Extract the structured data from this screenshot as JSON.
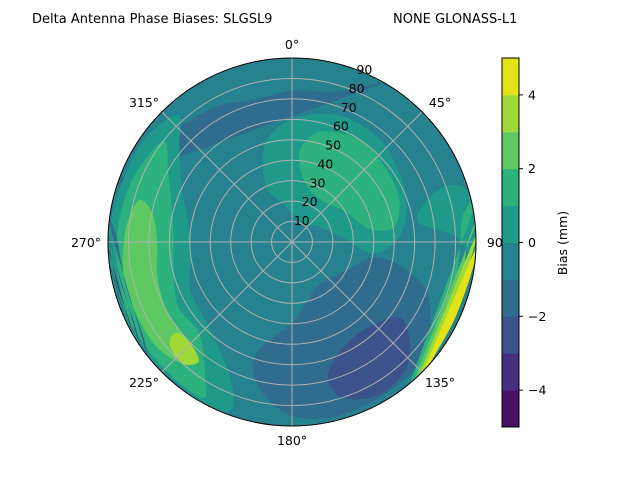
{
  "chart_data": {
    "type": "heatmap",
    "subtype": "polar-contour",
    "title_left": "Delta Antenna Phase Biases: SLGSL9",
    "title_right": "NONE GLONASS-L1",
    "azimuth_direction": "clockwise",
    "azimuth_zero": "top",
    "azimuth_ticks": [
      {
        "value": 0,
        "label": "0°"
      },
      {
        "value": 45,
        "label": "45°"
      },
      {
        "value": 90,
        "label": "90°"
      },
      {
        "value": 135,
        "label": "135°"
      },
      {
        "value": 180,
        "label": "180°"
      },
      {
        "value": 225,
        "label": "225°"
      },
      {
        "value": 270,
        "label": "270°"
      },
      {
        "value": 315,
        "label": "315°"
      }
    ],
    "radial_range": [
      0,
      90
    ],
    "radial_ticks": [
      "10",
      "20",
      "30",
      "40",
      "50",
      "60",
      "70",
      "80",
      "90"
    ],
    "grid": true,
    "colorbar": {
      "label": "Bias (mm)",
      "range": [
        -5,
        5
      ],
      "ticks": [
        "−4",
        "−2",
        "0",
        "2",
        "4"
      ],
      "tick_values": [
        -4,
        -2,
        0,
        2,
        4
      ],
      "levels": [
        -5,
        -4,
        -3,
        -2,
        -1,
        0,
        1,
        2,
        3,
        4,
        5
      ],
      "colors": [
        "#471164",
        "#472f7d",
        "#3b528b",
        "#2f6c8e",
        "#26828e",
        "#1f9a8a",
        "#2db27d",
        "#5ec962",
        "#a0da39",
        "#e2e418"
      ]
    },
    "background_level": -1,
    "regions": [
      {
        "level": -2,
        "points": [
          [
            290,
            90
          ],
          [
            292,
            84
          ],
          [
            310,
            80
          ],
          [
            330,
            76
          ],
          [
            345,
            72
          ],
          [
            0,
            74
          ],
          [
            15,
            76
          ],
          [
            25,
            84
          ],
          [
            30,
            90
          ]
        ]
      },
      {
        "level": 0,
        "points": [
          [
            335,
            30
          ],
          [
            345,
            50
          ],
          [
            0,
            60
          ],
          [
            20,
            66
          ],
          [
            40,
            66
          ],
          [
            60,
            62
          ],
          [
            75,
            58
          ],
          [
            88,
            52
          ],
          [
            98,
            40
          ],
          [
            85,
            25
          ],
          [
            60,
            15
          ],
          [
            25,
            10
          ],
          [
            350,
            18
          ]
        ]
      },
      {
        "level": 0,
        "points": [
          [
            80,
            62
          ],
          [
            88,
            80
          ],
          [
            95,
            90
          ],
          [
            75,
            90
          ],
          [
            70,
            78
          ]
        ]
      },
      {
        "level": 0,
        "points": [
          [
            205,
            72
          ],
          [
            200,
            88
          ],
          [
            212,
            90
          ],
          [
            240,
            90
          ],
          [
            270,
            90
          ],
          [
            300,
            88
          ],
          [
            318,
            84
          ],
          [
            310,
            72
          ],
          [
            296,
            60
          ],
          [
            282,
            52
          ],
          [
            262,
            50
          ],
          [
            245,
            55
          ],
          [
            225,
            58
          ]
        ]
      },
      {
        "level": 1,
        "points": [
          [
            5,
            45
          ],
          [
            15,
            56
          ],
          [
            35,
            60
          ],
          [
            55,
            58
          ],
          [
            70,
            56
          ],
          [
            82,
            50
          ],
          [
            80,
            38
          ],
          [
            60,
            30
          ],
          [
            35,
            25
          ],
          [
            12,
            30
          ]
        ]
      },
      {
        "level": 1,
        "points": [
          [
            212,
            80
          ],
          [
            210,
            88
          ],
          [
            225,
            88
          ],
          [
            245,
            88
          ],
          [
            268,
            86
          ],
          [
            290,
            84
          ],
          [
            308,
            80
          ],
          [
            300,
            70
          ],
          [
            288,
            62
          ],
          [
            272,
            58
          ],
          [
            255,
            60
          ],
          [
            240,
            64
          ],
          [
            225,
            64
          ]
        ]
      },
      {
        "level": 2,
        "points": [
          [
            222,
            72
          ],
          [
            222,
            80
          ],
          [
            235,
            84
          ],
          [
            255,
            84
          ],
          [
            272,
            82
          ],
          [
            285,
            78
          ],
          [
            282,
            70
          ],
          [
            270,
            66
          ],
          [
            255,
            68
          ],
          [
            240,
            70
          ]
        ]
      },
      {
        "level": 3,
        "points": [
          [
            218,
            74
          ],
          [
            222,
            80
          ],
          [
            230,
            78
          ],
          [
            232,
            72
          ],
          [
            226,
            70
          ]
        ]
      },
      {
        "level": -2,
        "points": [
          [
            100,
            42
          ],
          [
            118,
            30
          ],
          [
            150,
            25
          ],
          [
            178,
            38
          ],
          [
            198,
            58
          ],
          [
            192,
            74
          ],
          [
            178,
            86
          ],
          [
            158,
            88
          ],
          [
            132,
            86
          ],
          [
            112,
            72
          ],
          [
            104,
            58
          ]
        ]
      },
      {
        "level": -3,
        "points": [
          [
            125,
            66
          ],
          [
            138,
            56
          ],
          [
            155,
            58
          ],
          [
            165,
            68
          ],
          [
            162,
            80
          ],
          [
            150,
            86
          ],
          [
            136,
            82
          ]
        ]
      },
      {
        "level": 1,
        "points": [
          [
            80,
            90
          ],
          [
            82,
            84
          ],
          [
            100,
            82
          ],
          [
            125,
            84
          ],
          [
            140,
            90
          ]
        ]
      },
      {
        "level": 2,
        "points": [
          [
            85,
            90
          ],
          [
            90,
            86
          ],
          [
            105,
            85
          ],
          [
            125,
            86
          ],
          [
            138,
            90
          ]
        ]
      },
      {
        "level": 3,
        "points": [
          [
            88,
            90
          ],
          [
            95,
            88
          ],
          [
            110,
            87
          ],
          [
            128,
            88
          ],
          [
            136,
            90
          ]
        ]
      },
      {
        "level": 4,
        "points": [
          [
            92,
            90
          ],
          [
            100,
            89
          ],
          [
            115,
            88
          ],
          [
            128,
            89
          ],
          [
            134,
            90
          ]
        ]
      },
      {
        "level": -2,
        "points": [
          [
            232,
            90
          ],
          [
            238,
            86
          ],
          [
            255,
            84
          ],
          [
            272,
            86
          ],
          [
            276,
            90
          ]
        ]
      },
      {
        "level": -3,
        "points": [
          [
            236,
            90
          ],
          [
            242,
            87
          ],
          [
            255,
            86
          ],
          [
            268,
            88
          ],
          [
            272,
            90
          ]
        ]
      },
      {
        "level": -4,
        "points": [
          [
            240,
            90
          ],
          [
            246,
            88
          ],
          [
            256,
            88
          ],
          [
            266,
            89
          ],
          [
            268,
            90
          ]
        ]
      },
      {
        "level": -5,
        "points": [
          [
            244,
            90
          ],
          [
            250,
            89
          ],
          [
            258,
            89
          ],
          [
            264,
            90
          ]
        ]
      }
    ]
  }
}
